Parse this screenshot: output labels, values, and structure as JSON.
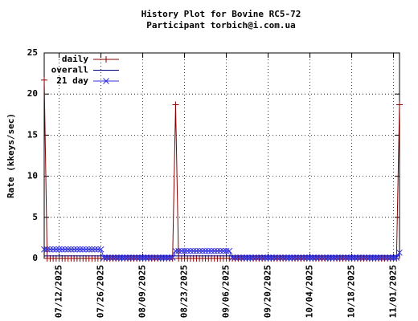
{
  "chart_data": {
    "type": "line",
    "title": "History Plot for Bovine RC5-72",
    "subtitle": "Participant torbich@i.com.ua",
    "y_label": "Rate (kkeys/sec)",
    "xlim": [
      "2025-07-07",
      "2025-11-03"
    ],
    "xticks": [
      {
        "value": "2025-07-12",
        "label": "07/12/2025"
      },
      {
        "value": "2025-07-26",
        "label": "07/26/2025"
      },
      {
        "value": "2025-08-09",
        "label": "08/09/2025"
      },
      {
        "value": "2025-08-23",
        "label": "08/23/2025"
      },
      {
        "value": "2025-09-06",
        "label": "09/06/2025"
      },
      {
        "value": "2025-09-20",
        "label": "09/20/2025"
      },
      {
        "value": "2025-10-04",
        "label": "10/04/2025"
      },
      {
        "value": "2025-10-18",
        "label": "10/18/2025"
      },
      {
        "value": "2025-11-01",
        "label": "11/01/2025"
      }
    ],
    "ylim": [
      0,
      25
    ],
    "yticks": [
      0,
      5,
      10,
      15,
      20,
      25
    ],
    "grid": true,
    "legend": "top-left",
    "x": [
      "2025-07-07",
      "2025-07-08",
      "2025-07-09",
      "2025-07-10",
      "2025-07-11",
      "2025-07-12",
      "2025-07-13",
      "2025-07-14",
      "2025-07-15",
      "2025-07-16",
      "2025-07-17",
      "2025-07-18",
      "2025-07-19",
      "2025-07-20",
      "2025-07-21",
      "2025-07-22",
      "2025-07-23",
      "2025-07-24",
      "2025-07-25",
      "2025-07-26",
      "2025-07-27",
      "2025-07-28",
      "2025-07-29",
      "2025-07-30",
      "2025-07-31",
      "2025-08-01",
      "2025-08-02",
      "2025-08-03",
      "2025-08-04",
      "2025-08-05",
      "2025-08-06",
      "2025-08-07",
      "2025-08-08",
      "2025-08-09",
      "2025-08-10",
      "2025-08-11",
      "2025-08-12",
      "2025-08-13",
      "2025-08-14",
      "2025-08-15",
      "2025-08-16",
      "2025-08-17",
      "2025-08-18",
      "2025-08-19",
      "2025-08-20",
      "2025-08-21",
      "2025-08-22",
      "2025-08-23",
      "2025-08-24",
      "2025-08-25",
      "2025-08-26",
      "2025-08-27",
      "2025-08-28",
      "2025-08-29",
      "2025-08-30",
      "2025-08-31",
      "2025-09-01",
      "2025-09-02",
      "2025-09-03",
      "2025-09-04",
      "2025-09-05",
      "2025-09-06",
      "2025-09-07",
      "2025-09-08",
      "2025-09-09",
      "2025-09-10",
      "2025-09-11",
      "2025-09-12",
      "2025-09-13",
      "2025-09-14",
      "2025-09-15",
      "2025-09-16",
      "2025-09-17",
      "2025-09-18",
      "2025-09-19",
      "2025-09-20",
      "2025-09-21",
      "2025-09-22",
      "2025-09-23",
      "2025-09-24",
      "2025-09-25",
      "2025-09-26",
      "2025-09-27",
      "2025-09-28",
      "2025-09-29",
      "2025-09-30",
      "2025-10-01",
      "2025-10-02",
      "2025-10-03",
      "2025-10-04",
      "2025-10-05",
      "2025-10-06",
      "2025-10-07",
      "2025-10-08",
      "2025-10-09",
      "2025-10-10",
      "2025-10-11",
      "2025-10-12",
      "2025-10-13",
      "2025-10-14",
      "2025-10-15",
      "2025-10-16",
      "2025-10-17",
      "2025-10-18",
      "2025-10-19",
      "2025-10-20",
      "2025-10-21",
      "2025-10-22",
      "2025-10-23",
      "2025-10-24",
      "2025-10-25",
      "2025-10-26",
      "2025-10-27",
      "2025-10-28",
      "2025-10-29",
      "2025-10-30",
      "2025-10-31",
      "2025-11-01",
      "2025-11-02",
      "2025-11-03"
    ],
    "series": [
      {
        "name": "daily",
        "color": "#8b0000",
        "marker": "plus",
        "values": [
          21.7,
          0,
          0,
          0,
          0,
          0,
          0,
          0,
          0,
          0,
          0,
          0,
          0,
          0,
          0,
          0,
          0,
          0,
          0,
          0,
          0,
          0,
          0,
          0,
          0,
          0,
          0,
          0,
          0,
          0,
          0,
          0,
          0,
          0,
          0,
          0,
          0,
          0,
          0,
          0,
          0,
          0,
          0,
          0,
          18.7,
          0,
          0,
          0,
          0,
          0,
          0,
          0,
          0,
          0,
          0,
          0,
          0,
          0,
          0,
          0,
          0,
          0,
          0,
          0,
          0,
          0,
          0,
          0,
          0,
          0,
          0,
          0,
          0,
          0,
          0,
          0,
          0,
          0,
          0,
          0,
          0,
          0,
          0,
          0,
          0,
          0,
          0,
          0,
          0,
          0,
          0,
          0,
          0,
          0,
          0,
          0,
          0,
          0,
          0,
          0,
          0,
          0,
          0,
          0,
          0,
          0,
          0,
          0,
          0,
          0,
          0,
          0,
          0,
          0,
          0,
          0,
          0,
          0,
          0,
          18.7
        ]
      },
      {
        "name": "overall",
        "color": "#000080",
        "x": [
          "2025-07-07",
          "2025-11-03"
        ],
        "values": [
          0.3,
          0.3
        ]
      },
      {
        "name": "21 day",
        "color": "#3030e0",
        "marker": "cross",
        "values": [
          1.1,
          1.1,
          1.1,
          1.1,
          1.1,
          1.1,
          1.1,
          1.1,
          1.1,
          1.1,
          1.1,
          1.1,
          1.1,
          1.1,
          1.1,
          1.1,
          1.1,
          1.1,
          1.1,
          1.1,
          0.1,
          0.1,
          0.1,
          0.1,
          0.1,
          0.1,
          0.1,
          0.1,
          0.1,
          0.1,
          0.1,
          0.1,
          0.1,
          0.1,
          0.1,
          0.1,
          0.1,
          0.1,
          0.1,
          0.1,
          0.1,
          0.1,
          0.1,
          0.1,
          0.9,
          0.9,
          0.9,
          0.9,
          0.9,
          0.9,
          0.9,
          0.9,
          0.9,
          0.9,
          0.9,
          0.9,
          0.9,
          0.9,
          0.9,
          0.9,
          0.9,
          0.9,
          0.9,
          0.1,
          0.1,
          0.1,
          0.1,
          0.1,
          0.1,
          0.1,
          0.1,
          0.1,
          0.1,
          0.1,
          0.1,
          0.1,
          0.1,
          0.1,
          0.1,
          0.1,
          0.1,
          0.1,
          0.1,
          0.1,
          0.1,
          0.1,
          0.1,
          0.1,
          0.1,
          0.1,
          0.1,
          0.1,
          0.1,
          0.1,
          0.1,
          0.1,
          0.1,
          0.1,
          0.1,
          0.1,
          0.1,
          0.1,
          0.1,
          0.1,
          0.1,
          0.1,
          0.1,
          0.1,
          0.1,
          0.1,
          0.1,
          0.1,
          0.1,
          0.1,
          0.1,
          0.1,
          0.1,
          0.1,
          0.1,
          0.7
        ]
      }
    ]
  }
}
